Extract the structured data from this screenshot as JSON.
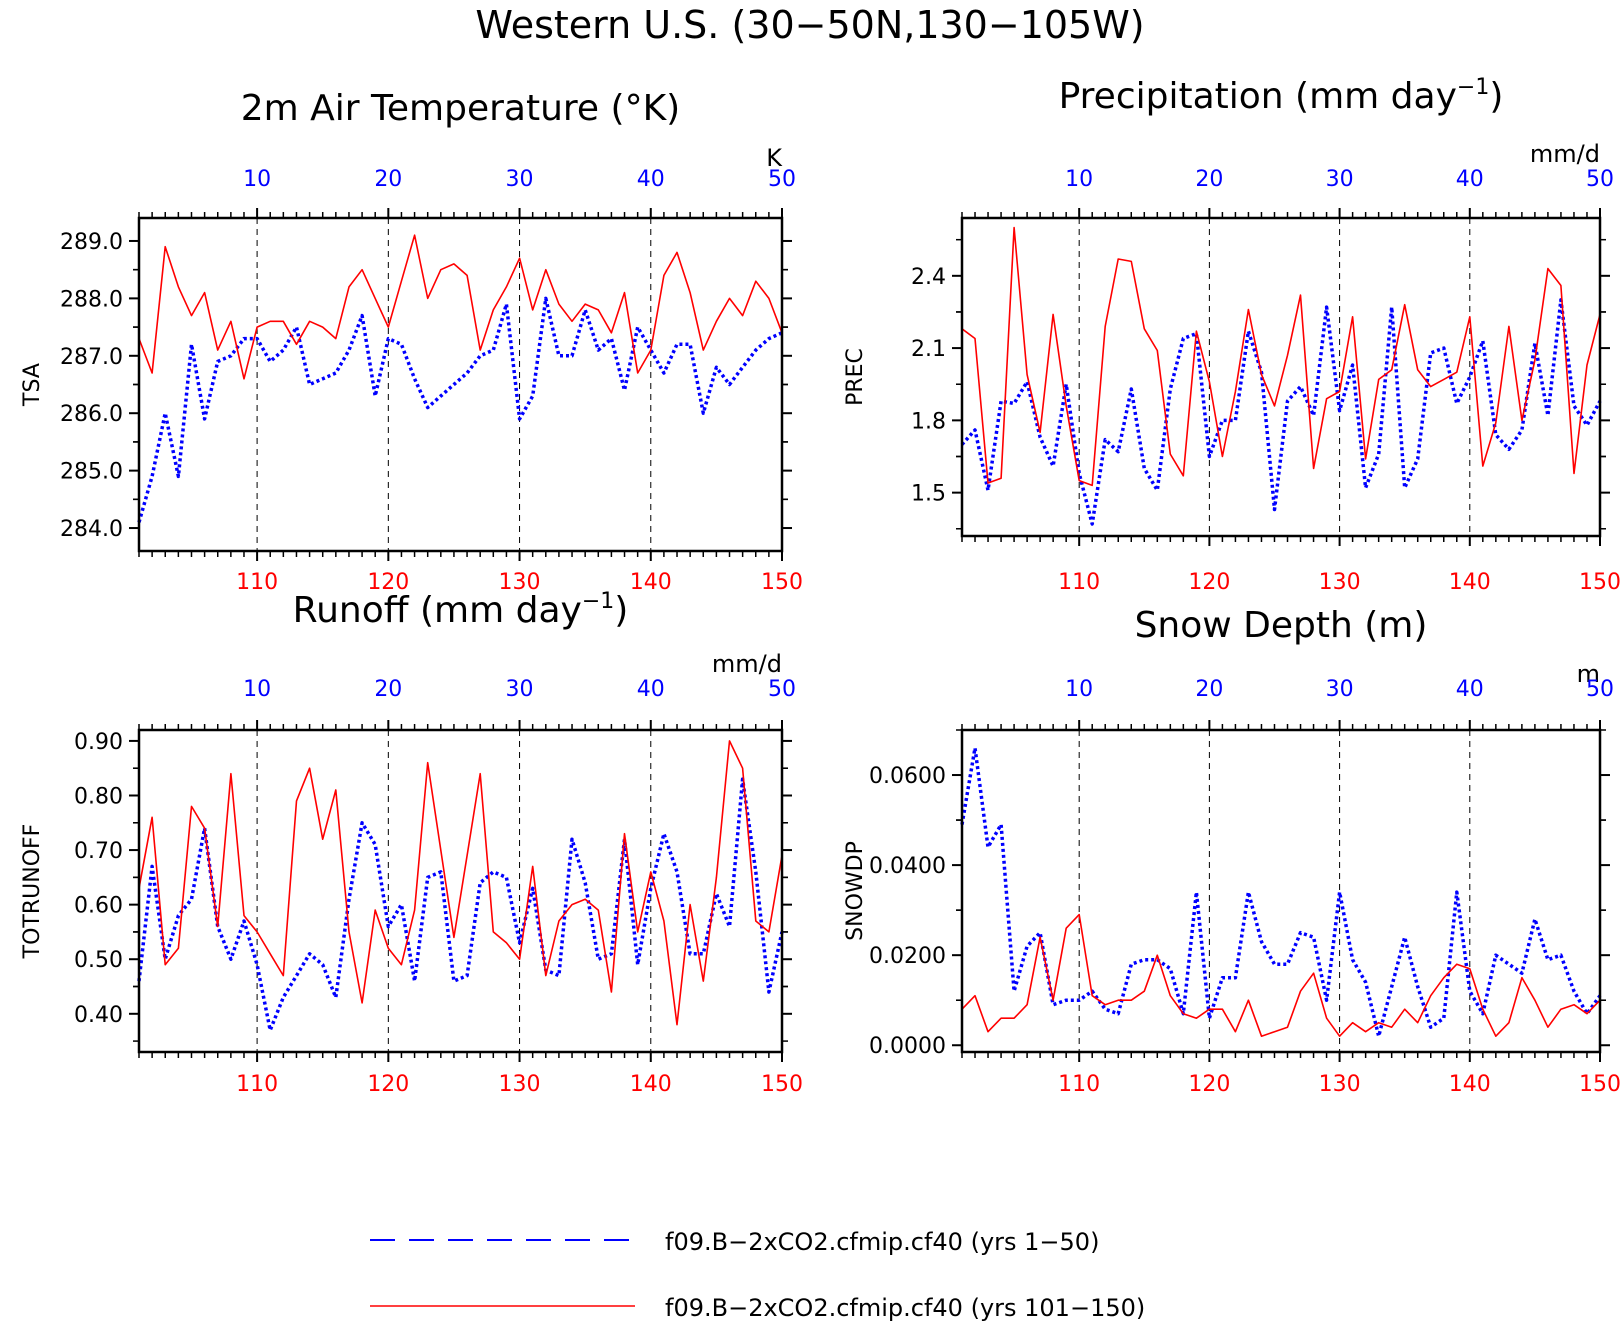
{
  "figure": {
    "title": "Western U.S. (30−50N,130−105W)",
    "colors": {
      "blue": "#0000ff",
      "red": "#ff0000",
      "frame": "#000000"
    }
  },
  "legend": {
    "entries": [
      {
        "label": "f09.B−2xCO2.cfmip.cf40 (yrs 1−50)",
        "color": "#0000ff",
        "style": "dashed"
      },
      {
        "label": "f09.B−2xCO2.cfmip.cf40 (yrs 101−150)",
        "color": "#ff0000",
        "style": "solid"
      }
    ]
  },
  "chart_data": [
    {
      "type": "line",
      "title": "2m Air Temperature (°K)",
      "ylabel": "TSA",
      "units": "K",
      "ylim": [
        283.6,
        289.4
      ],
      "yticks": [
        284.0,
        285.0,
        286.0,
        287.0,
        288.0,
        289.0
      ],
      "ytick_labels": [
        "284.0",
        "285.0",
        "286.0",
        "287.0",
        "288.0",
        "289.0"
      ],
      "xlim_top": [
        1,
        50
      ],
      "xticks_top": [
        10,
        20,
        30,
        40,
        50
      ],
      "xlim_bottom": [
        101,
        150
      ],
      "xticks_bottom": [
        110,
        120,
        130,
        140,
        150
      ],
      "grid": "dashed-vertical",
      "series": [
        {
          "axis": "top",
          "color": "#0000ff",
          "style": "dotted",
          "values": [
            284.1,
            284.9,
            286.0,
            284.9,
            287.2,
            285.9,
            286.9,
            287.0,
            287.3,
            287.3,
            286.9,
            287.1,
            287.5,
            286.5,
            286.6,
            286.7,
            287.1,
            287.7,
            286.3,
            287.3,
            287.2,
            286.6,
            286.1,
            286.3,
            286.5,
            286.7,
            287.0,
            287.1,
            287.9,
            285.9,
            286.3,
            288.0,
            287.0,
            287.0,
            287.8,
            287.1,
            287.3,
            286.4,
            287.5,
            287.1,
            286.7,
            287.2,
            287.2,
            286.0,
            286.8,
            286.5,
            286.8,
            287.1,
            287.3,
            287.4
          ]
        },
        {
          "axis": "bottom",
          "color": "#ff0000",
          "style": "solid",
          "values": [
            287.3,
            286.7,
            288.9,
            288.2,
            287.7,
            288.1,
            287.1,
            287.6,
            286.6,
            287.5,
            287.6,
            287.6,
            287.2,
            287.6,
            287.5,
            287.3,
            288.2,
            288.5,
            288.0,
            287.5,
            288.3,
            289.1,
            288.0,
            288.5,
            288.6,
            288.4,
            287.1,
            287.8,
            288.2,
            288.7,
            287.8,
            288.5,
            287.9,
            287.6,
            287.9,
            287.8,
            287.4,
            288.1,
            286.7,
            287.1,
            288.4,
            288.8,
            288.1,
            287.1,
            287.6,
            288.0,
            287.7,
            288.3,
            288.0,
            287.4
          ]
        }
      ]
    },
    {
      "type": "line",
      "title": "Precipitation (mm day⁻¹)",
      "ylabel": "PREC",
      "units": "mm/d",
      "ylim": [
        1.32,
        2.64
      ],
      "yticks": [
        1.5,
        1.8,
        2.1,
        2.4
      ],
      "ytick_labels": [
        "1.5",
        "1.8",
        "2.1",
        "2.4"
      ],
      "xlim_top": [
        1,
        50
      ],
      "xticks_top": [
        10,
        20,
        30,
        40,
        50
      ],
      "xlim_bottom": [
        101,
        150
      ],
      "xticks_bottom": [
        110,
        120,
        130,
        140,
        150
      ],
      "grid": "dashed-vertical",
      "series": [
        {
          "axis": "top",
          "color": "#0000ff",
          "style": "dotted",
          "values": [
            1.7,
            1.76,
            1.51,
            1.88,
            1.87,
            1.96,
            1.73,
            1.61,
            1.95,
            1.58,
            1.37,
            1.72,
            1.67,
            1.93,
            1.6,
            1.51,
            1.93,
            2.14,
            2.16,
            1.65,
            1.8,
            1.8,
            2.17,
            2.0,
            1.43,
            1.88,
            1.94,
            1.82,
            2.27,
            1.84,
            2.03,
            1.52,
            1.66,
            2.27,
            1.52,
            1.64,
            2.08,
            2.1,
            1.87,
            1.98,
            2.13,
            1.74,
            1.68,
            1.76,
            2.12,
            1.82,
            2.3,
            1.86,
            1.78,
            1.88
          ]
        },
        {
          "axis": "bottom",
          "color": "#ff0000",
          "style": "solid",
          "values": [
            2.18,
            2.14,
            1.54,
            1.56,
            2.6,
            1.99,
            1.75,
            2.24,
            1.86,
            1.55,
            1.53,
            2.19,
            2.47,
            2.46,
            2.18,
            2.09,
            1.66,
            1.57,
            2.17,
            1.96,
            1.65,
            1.92,
            2.26,
            1.99,
            1.86,
            2.07,
            2.32,
            1.6,
            1.89,
            1.92,
            2.23,
            1.64,
            1.97,
            2.01,
            2.28,
            2.01,
            1.94,
            1.97,
            2.0,
            2.23,
            1.61,
            1.79,
            2.19,
            1.8,
            2.05,
            2.43,
            2.36,
            1.58,
            2.03,
            2.24
          ]
        }
      ]
    },
    {
      "type": "line",
      "title": "Runoff (mm day⁻¹)",
      "ylabel": "TOTRUNOFF",
      "units": "mm/d",
      "ylim": [
        0.33,
        0.92
      ],
      "yticks": [
        0.4,
        0.5,
        0.6,
        0.7,
        0.8,
        0.9
      ],
      "ytick_labels": [
        "0.40",
        "0.50",
        "0.60",
        "0.70",
        "0.80",
        "0.90"
      ],
      "xlim_top": [
        1,
        50
      ],
      "xticks_top": [
        10,
        20,
        30,
        40,
        50
      ],
      "xlim_bottom": [
        101,
        150
      ],
      "xticks_bottom": [
        110,
        120,
        130,
        140,
        150
      ],
      "grid": "dashed-vertical",
      "series": [
        {
          "axis": "top",
          "color": "#0000ff",
          "style": "dotted",
          "values": [
            0.46,
            0.67,
            0.5,
            0.58,
            0.61,
            0.74,
            0.56,
            0.5,
            0.57,
            0.49,
            0.37,
            0.43,
            0.47,
            0.51,
            0.49,
            0.43,
            0.61,
            0.75,
            0.71,
            0.56,
            0.6,
            0.46,
            0.65,
            0.66,
            0.46,
            0.47,
            0.64,
            0.66,
            0.65,
            0.53,
            0.63,
            0.48,
            0.47,
            0.72,
            0.64,
            0.5,
            0.51,
            0.72,
            0.49,
            0.63,
            0.73,
            0.66,
            0.51,
            0.51,
            0.62,
            0.56,
            0.83,
            0.66,
            0.44,
            0.55
          ]
        },
        {
          "axis": "bottom",
          "color": "#ff0000",
          "style": "solid",
          "values": [
            0.63,
            0.76,
            0.49,
            0.52,
            0.78,
            0.74,
            0.56,
            0.84,
            0.58,
            0.55,
            0.51,
            0.47,
            0.79,
            0.85,
            0.72,
            0.81,
            0.55,
            0.42,
            0.59,
            0.52,
            0.49,
            0.59,
            0.86,
            0.7,
            0.54,
            0.69,
            0.84,
            0.55,
            0.53,
            0.5,
            0.67,
            0.47,
            0.57,
            0.6,
            0.61,
            0.59,
            0.44,
            0.73,
            0.55,
            0.66,
            0.57,
            0.38,
            0.6,
            0.46,
            0.65,
            0.9,
            0.85,
            0.57,
            0.55,
            0.69
          ]
        }
      ]
    },
    {
      "type": "line",
      "title": "Snow Depth (m)",
      "ylabel": "SNOWDP",
      "units": "m",
      "ylim": [
        -0.0015,
        0.07
      ],
      "yticks": [
        0.0,
        0.02,
        0.04,
        0.06
      ],
      "ytick_labels": [
        "0.0000",
        "0.0200",
        "0.0400",
        "0.0600"
      ],
      "xlim_top": [
        1,
        50
      ],
      "xticks_top": [
        10,
        20,
        30,
        40,
        50
      ],
      "xlim_bottom": [
        101,
        150
      ],
      "xticks_bottom": [
        110,
        120,
        130,
        140,
        150
      ],
      "grid": "dashed-vertical",
      "series": [
        {
          "axis": "top",
          "color": "#0000ff",
          "style": "dotted",
          "values": [
            0.049,
            0.066,
            0.044,
            0.049,
            0.012,
            0.022,
            0.025,
            0.009,
            0.01,
            0.01,
            0.012,
            0.008,
            0.007,
            0.018,
            0.019,
            0.019,
            0.017,
            0.007,
            0.034,
            0.006,
            0.015,
            0.015,
            0.034,
            0.023,
            0.018,
            0.018,
            0.025,
            0.024,
            0.01,
            0.034,
            0.019,
            0.014,
            0.002,
            0.013,
            0.024,
            0.013,
            0.004,
            0.006,
            0.034,
            0.012,
            0.007,
            0.02,
            0.018,
            0.016,
            0.028,
            0.019,
            0.02,
            0.012,
            0.007,
            0.011
          ]
        },
        {
          "axis": "bottom",
          "color": "#ff0000",
          "style": "solid",
          "values": [
            0.008,
            0.011,
            0.003,
            0.006,
            0.006,
            0.009,
            0.024,
            0.01,
            0.026,
            0.029,
            0.011,
            0.009,
            0.01,
            0.01,
            0.012,
            0.02,
            0.011,
            0.007,
            0.006,
            0.008,
            0.008,
            0.003,
            0.01,
            0.002,
            0.003,
            0.004,
            0.012,
            0.016,
            0.006,
            0.002,
            0.005,
            0.003,
            0.005,
            0.004,
            0.008,
            0.005,
            0.011,
            0.015,
            0.018,
            0.017,
            0.008,
            0.002,
            0.005,
            0.015,
            0.01,
            0.004,
            0.008,
            0.009,
            0.007,
            0.01
          ]
        }
      ]
    }
  ]
}
